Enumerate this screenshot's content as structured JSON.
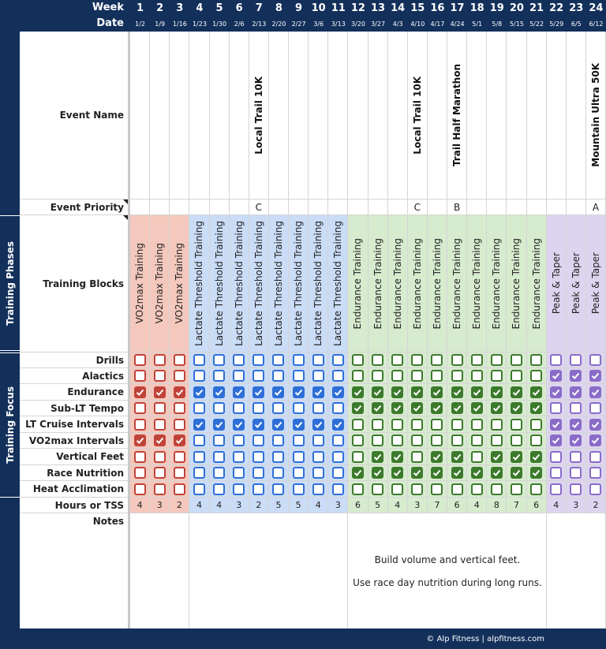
{
  "header": {
    "week_label": "Week",
    "date_label": "Date"
  },
  "section_labels": [
    "Training Phases",
    "Training Focus"
  ],
  "row_labels": {
    "event_name": "Event Name",
    "event_priority": "Event Priority",
    "training_blocks": "Training Blocks",
    "focus": [
      "Drills",
      "Alactics",
      "Endurance",
      "Sub-LT Tempo",
      "LT Cruise Intervals",
      "VO2max Intervals",
      "Vertical Feet",
      "Race Nutrition",
      "Heat Acclimation"
    ],
    "hours": "Hours or TSS",
    "notes": "Notes"
  },
  "weeks": [
    {
      "week": 1,
      "date": "1/2",
      "block": "VO2max Training",
      "focus": [
        false,
        false,
        true,
        false,
        false,
        true,
        false,
        false,
        false
      ],
      "hours": 4
    },
    {
      "week": 2,
      "date": "1/9",
      "block": "VO2max Training",
      "focus": [
        false,
        false,
        true,
        false,
        false,
        true,
        false,
        false,
        false
      ],
      "hours": 3
    },
    {
      "week": 3,
      "date": "1/16",
      "block": "VO2max Training",
      "focus": [
        false,
        false,
        true,
        false,
        false,
        true,
        false,
        false,
        false
      ],
      "hours": 2
    },
    {
      "week": 4,
      "date": "1/23",
      "block": "Lactate Threshold Training",
      "focus": [
        false,
        false,
        true,
        false,
        true,
        false,
        false,
        false,
        false
      ],
      "hours": 4
    },
    {
      "week": 5,
      "date": "1/30",
      "block": "Lactate Threshold Training",
      "focus": [
        false,
        false,
        true,
        false,
        true,
        false,
        false,
        false,
        false
      ],
      "hours": 4
    },
    {
      "week": 6,
      "date": "2/6",
      "block": "Lactate Threshold Training",
      "focus": [
        false,
        false,
        true,
        false,
        true,
        false,
        false,
        false,
        false
      ],
      "hours": 3
    },
    {
      "week": 7,
      "date": "2/13",
      "event": "Local Trail 10K",
      "priority": "C",
      "block": "Lactate Threshold Training",
      "focus": [
        false,
        false,
        true,
        false,
        true,
        false,
        false,
        false,
        false
      ],
      "hours": 2
    },
    {
      "week": 8,
      "date": "2/20",
      "block": "Lactate Threshold Training",
      "focus": [
        false,
        false,
        true,
        false,
        true,
        false,
        false,
        false,
        false
      ],
      "hours": 5
    },
    {
      "week": 9,
      "date": "2/27",
      "block": "Lactate Threshold Training",
      "focus": [
        false,
        false,
        true,
        false,
        true,
        false,
        false,
        false,
        false
      ],
      "hours": 5
    },
    {
      "week": 10,
      "date": "3/6",
      "block": "Lactate Threshold Training",
      "focus": [
        false,
        false,
        true,
        false,
        true,
        false,
        false,
        false,
        false
      ],
      "hours": 4
    },
    {
      "week": 11,
      "date": "3/13",
      "block": "Lactate Threshold Training",
      "focus": [
        false,
        false,
        true,
        false,
        true,
        false,
        false,
        false,
        false
      ],
      "hours": 3
    },
    {
      "week": 12,
      "date": "3/20",
      "block": "Endurance Training",
      "focus": [
        false,
        false,
        true,
        true,
        false,
        false,
        false,
        true,
        false
      ],
      "hours": 6
    },
    {
      "week": 13,
      "date": "3/27",
      "block": "Endurance Training",
      "focus": [
        false,
        false,
        true,
        true,
        false,
        false,
        true,
        true,
        false
      ],
      "hours": 5
    },
    {
      "week": 14,
      "date": "4/3",
      "block": "Endurance Training",
      "focus": [
        false,
        false,
        true,
        true,
        false,
        false,
        true,
        true,
        false
      ],
      "hours": 4
    },
    {
      "week": 15,
      "date": "4/10",
      "event": "Local Trail 10K",
      "priority": "C",
      "block": "Endurance Training",
      "focus": [
        false,
        false,
        true,
        true,
        false,
        false,
        false,
        true,
        false
      ],
      "hours": 3
    },
    {
      "week": 16,
      "date": "4/17",
      "block": "Endurance Training",
      "focus": [
        false,
        false,
        true,
        true,
        false,
        false,
        true,
        true,
        false
      ],
      "hours": 7
    },
    {
      "week": 17,
      "date": "4/24",
      "event": "Trail Half Marathon",
      "priority": "B",
      "block": "Endurance Training",
      "focus": [
        false,
        false,
        true,
        true,
        false,
        false,
        true,
        true,
        false
      ],
      "hours": 6
    },
    {
      "week": 18,
      "date": "5/1",
      "block": "Endurance Training",
      "focus": [
        false,
        false,
        true,
        true,
        false,
        false,
        false,
        true,
        false
      ],
      "hours": 4
    },
    {
      "week": 19,
      "date": "5/8",
      "block": "Endurance Training",
      "focus": [
        false,
        false,
        true,
        true,
        false,
        false,
        true,
        true,
        false
      ],
      "hours": 8
    },
    {
      "week": 20,
      "date": "5/15",
      "block": "Endurance Training",
      "focus": [
        false,
        false,
        true,
        true,
        false,
        false,
        true,
        true,
        false
      ],
      "hours": 7
    },
    {
      "week": 21,
      "date": "5/22",
      "block": "Endurance Training",
      "focus": [
        false,
        false,
        true,
        true,
        false,
        false,
        true,
        true,
        false
      ],
      "hours": 6
    },
    {
      "week": 22,
      "date": "5/29",
      "block": "Peak & Taper",
      "focus": [
        false,
        true,
        true,
        false,
        true,
        true,
        false,
        false,
        false
      ],
      "hours": 4
    },
    {
      "week": 23,
      "date": "6/5",
      "block": "Peak & Taper",
      "focus": [
        false,
        true,
        true,
        false,
        true,
        true,
        false,
        false,
        false
      ],
      "hours": 3
    },
    {
      "week": 24,
      "date": "6/12",
      "event": "Mountain Ultra 50K",
      "priority": "A",
      "block": "Peak & Taper",
      "focus": [
        false,
        true,
        true,
        false,
        true,
        true,
        false,
        false,
        false
      ],
      "hours": 2
    }
  ],
  "notes": [
    "Build volume and vertical feet.",
    "Use race day nutrition during long runs."
  ],
  "footer": "© Alp Fitness | alpfitness.com"
}
